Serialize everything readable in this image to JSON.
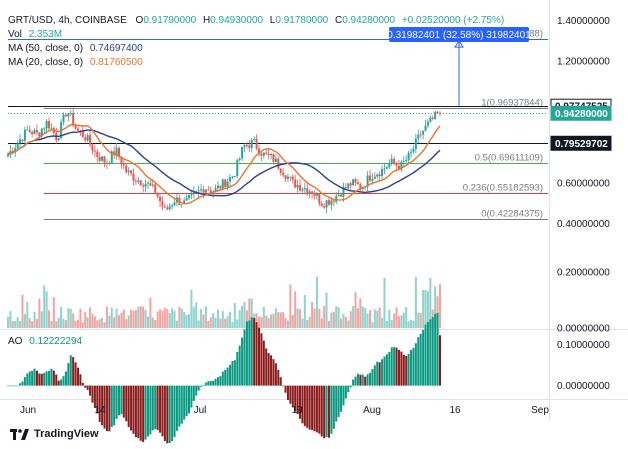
{
  "header": {
    "symbol": "GRT/USD, 4h, COINBASE",
    "o_label": "O",
    "o_value": "0.91790000",
    "h_label": "H",
    "h_value": "0.94930000",
    "l_label": "L",
    "l_value": "0.91780000",
    "c_label": "C",
    "c_value": "0.94280000",
    "change": "+0.02520000 (+2.75%)",
    "vol_label": "Vol",
    "vol_value": "2.353M",
    "ma50_label": "MA (50, close, 0)",
    "ma50_value": "0.74697400",
    "ma20_label": "MA (20, close, 0)",
    "ma20_value": "0.81760500",
    "ao_label": "AO",
    "ao_value": "0.12222294"
  },
  "measure_label": "0.31982401 (32.58%) 31982401",
  "branding": {
    "name": "TradingView"
  },
  "colors": {
    "up": "#26a69a",
    "down": "#ef5350",
    "ma50": "#2c3e93",
    "ma20": "#e8752a",
    "fib_gray": "#787b86",
    "fib_green": "#4caf50",
    "fib_red": "#f23645",
    "measure": "#2962ff",
    "ao_up": "#089981",
    "ao_down": "#8b1a1a"
  },
  "chart_data": {
    "type": "candlestick",
    "xaxis_ticks": [
      "Jun",
      "14",
      "Jul",
      "19",
      "Aug",
      "16",
      "Sep"
    ],
    "price_axis": {
      "ticks": [
        "1.40000000",
        "1.20000000",
        "0.60000000",
        "0.40000000"
      ],
      "range": [
        0.3,
        1.48
      ]
    },
    "price_labels": [
      {
        "value": 0.97747525,
        "text": "0.97747525",
        "style": "white"
      },
      {
        "value": 0.9428,
        "text": "0.94280000",
        "style": "green"
      },
      {
        "value": 0.79529702,
        "text": "0.79529702",
        "style": "dark"
      }
    ],
    "fib_levels": [
      {
        "ratio": "1.618",
        "value": 1.30713688,
        "text": "1.618(1.30713688)",
        "color": "#2962ff"
      },
      {
        "ratio": "1",
        "value": 0.96937844,
        "text": "1(0.96937844)",
        "color": "#787b86"
      },
      {
        "ratio": "0.5",
        "value": 0.69611109,
        "text": "0.5(0.69611109)",
        "color": "#4caf50"
      },
      {
        "ratio": "0.236",
        "value": 0.55182593,
        "text": "0.236(0.55182593)",
        "color": "#f23645"
      },
      {
        "ratio": "0",
        "value": 0.42284375,
        "text": "0(0.42284375)",
        "color": "#787b86"
      }
    ],
    "price_path": [
      0.74,
      0.8,
      0.86,
      0.84,
      0.9,
      0.82,
      0.96,
      0.86,
      0.82,
      0.74,
      0.7,
      0.76,
      0.66,
      0.62,
      0.6,
      0.56,
      0.46,
      0.52,
      0.5,
      0.54,
      0.58,
      0.56,
      0.6,
      0.64,
      0.78,
      0.8,
      0.74,
      0.72,
      0.66,
      0.6,
      0.58,
      0.56,
      0.5,
      0.52,
      0.56,
      0.6,
      0.58,
      0.64,
      0.66,
      0.7,
      0.68,
      0.74,
      0.84,
      0.9,
      0.95
    ],
    "volume_axis": {
      "ticks": [
        "0.20000000",
        "0.00000000"
      ],
      "range": [
        0,
        0.3
      ]
    },
    "ao_axis": {
      "ticks": [
        "0.10000000",
        "0.00000000"
      ],
      "range": [
        -0.03,
        0.13
      ]
    }
  }
}
